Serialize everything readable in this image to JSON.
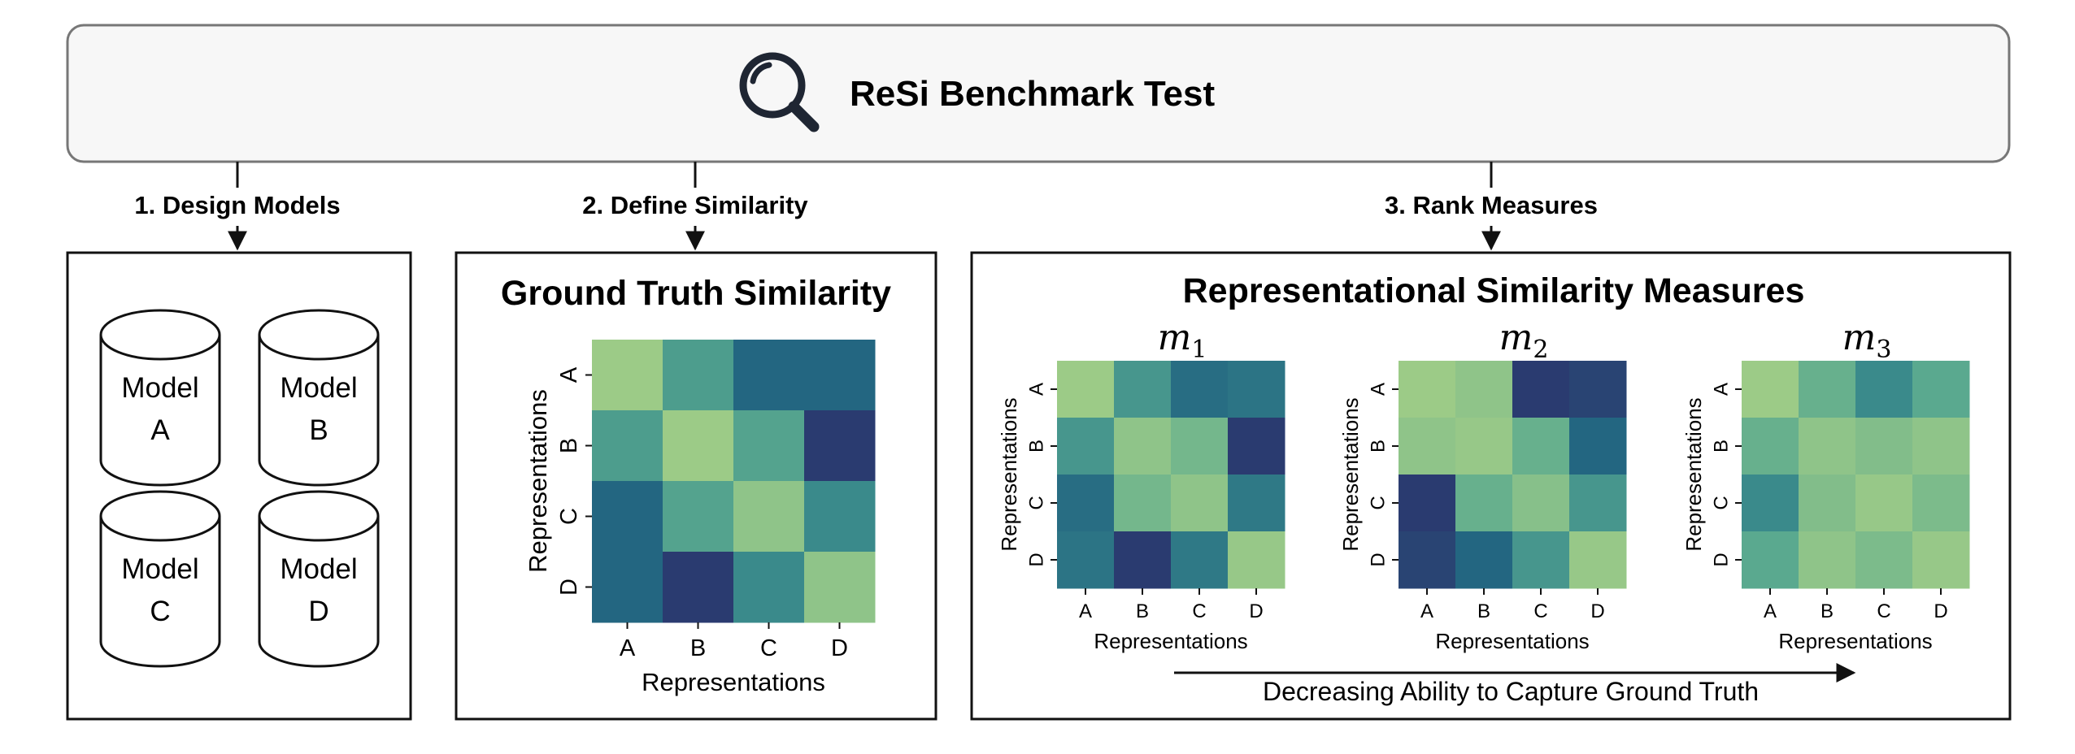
{
  "header": {
    "title": "ReSi Benchmark Test",
    "icon": "magnifier-icon"
  },
  "steps": [
    {
      "label": "1. Design Models"
    },
    {
      "label": "2. Define Similarity"
    },
    {
      "label": "3. Rank Measures"
    }
  ],
  "models": [
    {
      "line1": "Model",
      "line2": "A"
    },
    {
      "line1": "Model",
      "line2": "B"
    },
    {
      "line1": "Model",
      "line2": "C"
    },
    {
      "line1": "Model",
      "line2": "D"
    }
  ],
  "ground_truth": {
    "title": "Ground Truth Similarity"
  },
  "measures_panel": {
    "title": "Representational Similarity Measures",
    "arrow_caption": "Decreasing Ability to Capture Ground Truth"
  },
  "colors": {
    "cmap": [
      "#9ccb87",
      "#5aa98f",
      "#3a8a8b",
      "#236681",
      "#2a3b70"
    ],
    "header_fill": "#f7f7f7",
    "stroke": "#1a1a1a"
  },
  "chart_data": [
    {
      "type": "heatmap",
      "title": "Ground Truth Similarity",
      "xlabel": "Representations",
      "ylabel": "Representations",
      "x": [
        "A",
        "B",
        "C",
        "D"
      ],
      "y": [
        "A",
        "B",
        "C",
        "D"
      ],
      "values": [
        [
          0.0,
          0.35,
          0.75,
          0.75
        ],
        [
          0.35,
          0.0,
          0.3,
          1.0
        ],
        [
          0.75,
          0.3,
          0.05,
          0.5
        ],
        [
          0.75,
          1.0,
          0.5,
          0.05
        ]
      ]
    },
    {
      "type": "heatmap",
      "title": "m",
      "title_sub": "1",
      "xlabel": "Representations",
      "ylabel": "Representations",
      "x": [
        "A",
        "B",
        "C",
        "D"
      ],
      "y": [
        "A",
        "B",
        "C",
        "D"
      ],
      "values": [
        [
          0.0,
          0.4,
          0.7,
          0.65
        ],
        [
          0.4,
          0.05,
          0.15,
          1.0
        ],
        [
          0.7,
          0.15,
          0.05,
          0.62
        ],
        [
          0.65,
          1.0,
          0.62,
          0.02
        ]
      ]
    },
    {
      "type": "heatmap",
      "title": "m",
      "title_sub": "2",
      "xlabel": "Representations",
      "ylabel": "Representations",
      "x": [
        "A",
        "B",
        "C",
        "D"
      ],
      "y": [
        "A",
        "B",
        "C",
        "D"
      ],
      "values": [
        [
          0.0,
          0.05,
          1.0,
          0.95
        ],
        [
          0.05,
          0.02,
          0.2,
          0.75
        ],
        [
          1.0,
          0.2,
          0.08,
          0.4
        ],
        [
          0.95,
          0.75,
          0.4,
          0.02
        ]
      ]
    },
    {
      "type": "heatmap",
      "title": "m",
      "title_sub": "3",
      "xlabel": "Representations",
      "ylabel": "Representations",
      "x": [
        "A",
        "B",
        "C",
        "D"
      ],
      "y": [
        "A",
        "B",
        "C",
        "D"
      ],
      "values": [
        [
          0.0,
          0.2,
          0.5,
          0.25
        ],
        [
          0.2,
          0.05,
          0.1,
          0.05
        ],
        [
          0.5,
          0.1,
          0.02,
          0.12
        ],
        [
          0.25,
          0.05,
          0.12,
          0.02
        ]
      ]
    }
  ]
}
